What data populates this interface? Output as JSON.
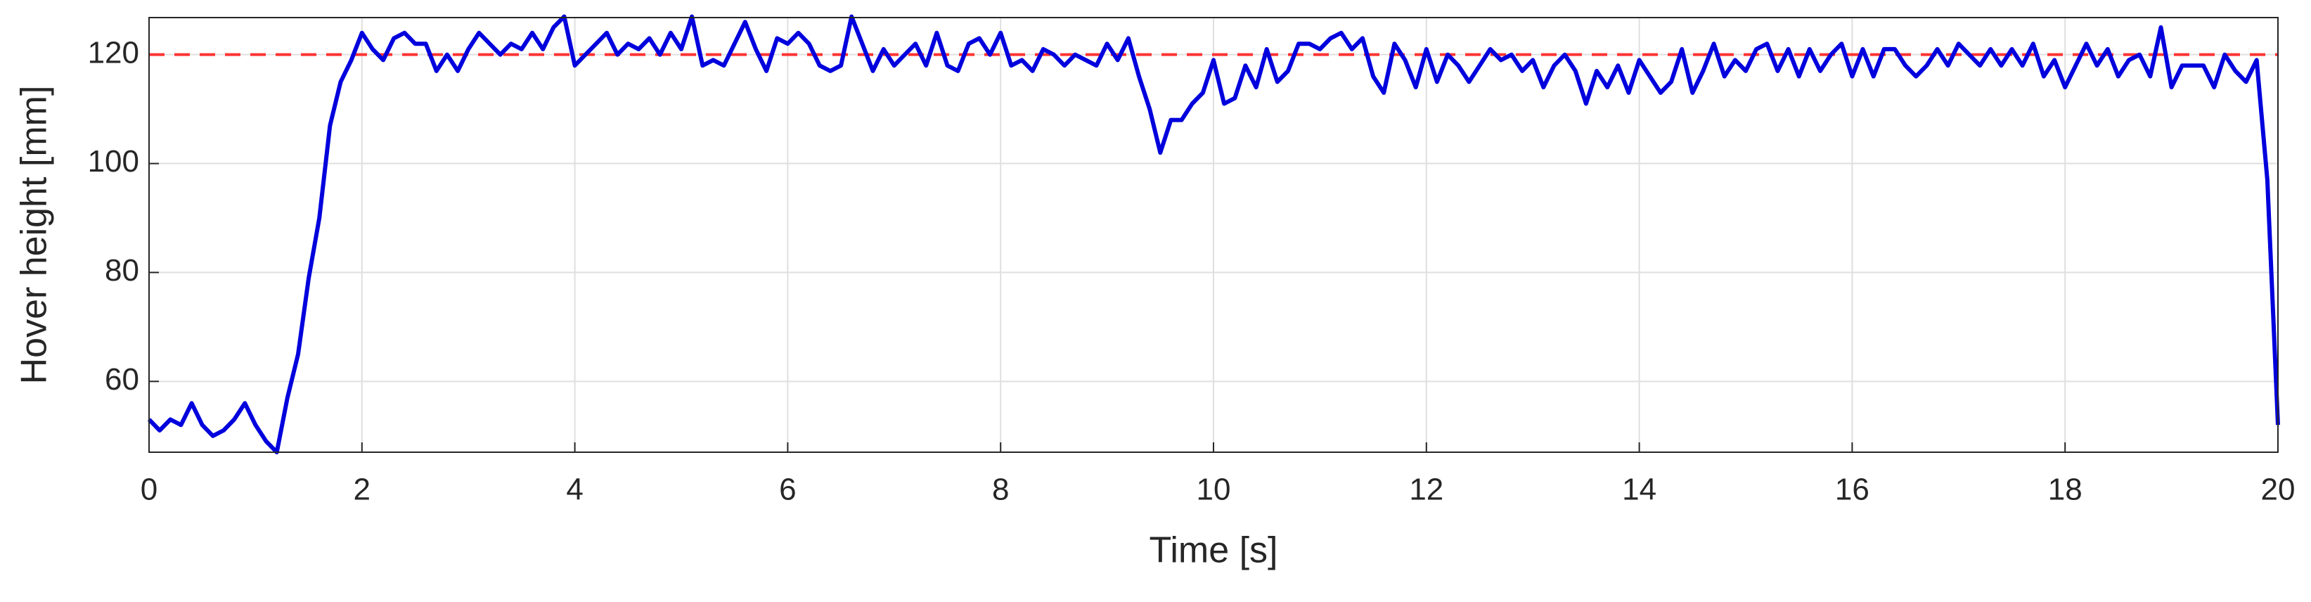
{
  "chart_data": {
    "type": "line",
    "xlabel": "Time [s]",
    "ylabel": "Hover height [mm]",
    "x": [
      0,
      0.1,
      0.2,
      0.3,
      0.4,
      0.5,
      0.6,
      0.7,
      0.8,
      0.9,
      1,
      1.1,
      1.2,
      1.3,
      1.4,
      1.5,
      1.6,
      1.7,
      1.8,
      1.9,
      2,
      2.1,
      2.2,
      2.3,
      2.4,
      2.5,
      2.6,
      2.7,
      2.8,
      2.9,
      3,
      3.1,
      3.2,
      3.3,
      3.4,
      3.5,
      3.6,
      3.7,
      3.8,
      3.9,
      4,
      4.1,
      4.2,
      4.3,
      4.4,
      4.5,
      4.6,
      4.7,
      4.8,
      4.9,
      5,
      5.1,
      5.2,
      5.3,
      5.4,
      5.5,
      5.6,
      5.7,
      5.8,
      5.9,
      6,
      6.1,
      6.2,
      6.3,
      6.4,
      6.5,
      6.6,
      6.7,
      6.8,
      6.9,
      7,
      7.1,
      7.2,
      7.3,
      7.4,
      7.5,
      7.6,
      7.7,
      7.8,
      7.9,
      8,
      8.1,
      8.2,
      8.3,
      8.4,
      8.5,
      8.6,
      8.7,
      8.8,
      8.9,
      9,
      9.1,
      9.2,
      9.3,
      9.4,
      9.5,
      9.6,
      9.7,
      9.8,
      9.9,
      10,
      10.1,
      10.2,
      10.3,
      10.4,
      10.5,
      10.6,
      10.7,
      10.8,
      10.9,
      11,
      11.1,
      11.2,
      11.3,
      11.4,
      11.5,
      11.6,
      11.7,
      11.8,
      11.9,
      12,
      12.1,
      12.2,
      12.3,
      12.4,
      12.5,
      12.6,
      12.7,
      12.8,
      12.9,
      13,
      13.1,
      13.2,
      13.3,
      13.4,
      13.5,
      13.6,
      13.7,
      13.8,
      13.9,
      14,
      14.1,
      14.2,
      14.3,
      14.4,
      14.5,
      14.6,
      14.7,
      14.8,
      14.9,
      15,
      15.1,
      15.2,
      15.3,
      15.4,
      15.5,
      15.6,
      15.7,
      15.8,
      15.9,
      16,
      16.1,
      16.2,
      16.3,
      16.4,
      16.5,
      16.6,
      16.7,
      16.8,
      16.9,
      17,
      17.1,
      17.2,
      17.3,
      17.4,
      17.5,
      17.6,
      17.7,
      17.8,
      17.9,
      18,
      18.1,
      18.2,
      18.3,
      18.4,
      18.5,
      18.6,
      18.7,
      18.8,
      18.9,
      19,
      19.1,
      19.2,
      19.3,
      19.4,
      19.5,
      19.6,
      19.7,
      19.8,
      19.9,
      20
    ],
    "series": [
      {
        "color": "#0000dd",
        "values": [
          53,
          51,
          53,
          52,
          56,
          52,
          50,
          51,
          53,
          56,
          52,
          49,
          47,
          57,
          65,
          79,
          90,
          107,
          115,
          119,
          124,
          121,
          119,
          123,
          124,
          122,
          122,
          117,
          120,
          117,
          121,
          124,
          122,
          120,
          122,
          121,
          124,
          121,
          125,
          127,
          118,
          120,
          122,
          124,
          120,
          122,
          121,
          123,
          120,
          124,
          121,
          127,
          118,
          119,
          118,
          122,
          126,
          121,
          117,
          123,
          122,
          124,
          122,
          118,
          117,
          118,
          127,
          122,
          117,
          121,
          118,
          120,
          122,
          118,
          124,
          118,
          117,
          122,
          123,
          120,
          124,
          118,
          119,
          117,
          121,
          120,
          118,
          120,
          119,
          118,
          122,
          119,
          123,
          116,
          110,
          102,
          108,
          108,
          111,
          113,
          119,
          111,
          112,
          118,
          114,
          121,
          115,
          117,
          122,
          122,
          121,
          123,
          124,
          121,
          123,
          116,
          113,
          122,
          119,
          114,
          121,
          115,
          120,
          118,
          115,
          118,
          121,
          119,
          120,
          117,
          119,
          114,
          118,
          120,
          117,
          111,
          117,
          114,
          118,
          113,
          119,
          116,
          113,
          115,
          121,
          113,
          117,
          122,
          116,
          119,
          117,
          121,
          122,
          117,
          121,
          116,
          121,
          117,
          120,
          122,
          116,
          121,
          116,
          121,
          121,
          118,
          116,
          118,
          121,
          118,
          122,
          120,
          118,
          121,
          118,
          121,
          118,
          122,
          116,
          119,
          114,
          118,
          122,
          118,
          121,
          116,
          119,
          120,
          116,
          125,
          114,
          118,
          118,
          118,
          114,
          120,
          117,
          115,
          119,
          97,
          52
        ]
      }
    ],
    "reference_line": {
      "value": 120,
      "color": "#ff3333",
      "dashed": true
    },
    "xlim": [
      0,
      20
    ],
    "xticks": [
      0,
      2,
      4,
      6,
      8,
      10,
      12,
      14,
      16,
      18,
      20
    ],
    "ylim": [
      47,
      126.8
    ],
    "yticks": [
      60,
      80,
      100,
      120
    ],
    "grid": true
  }
}
